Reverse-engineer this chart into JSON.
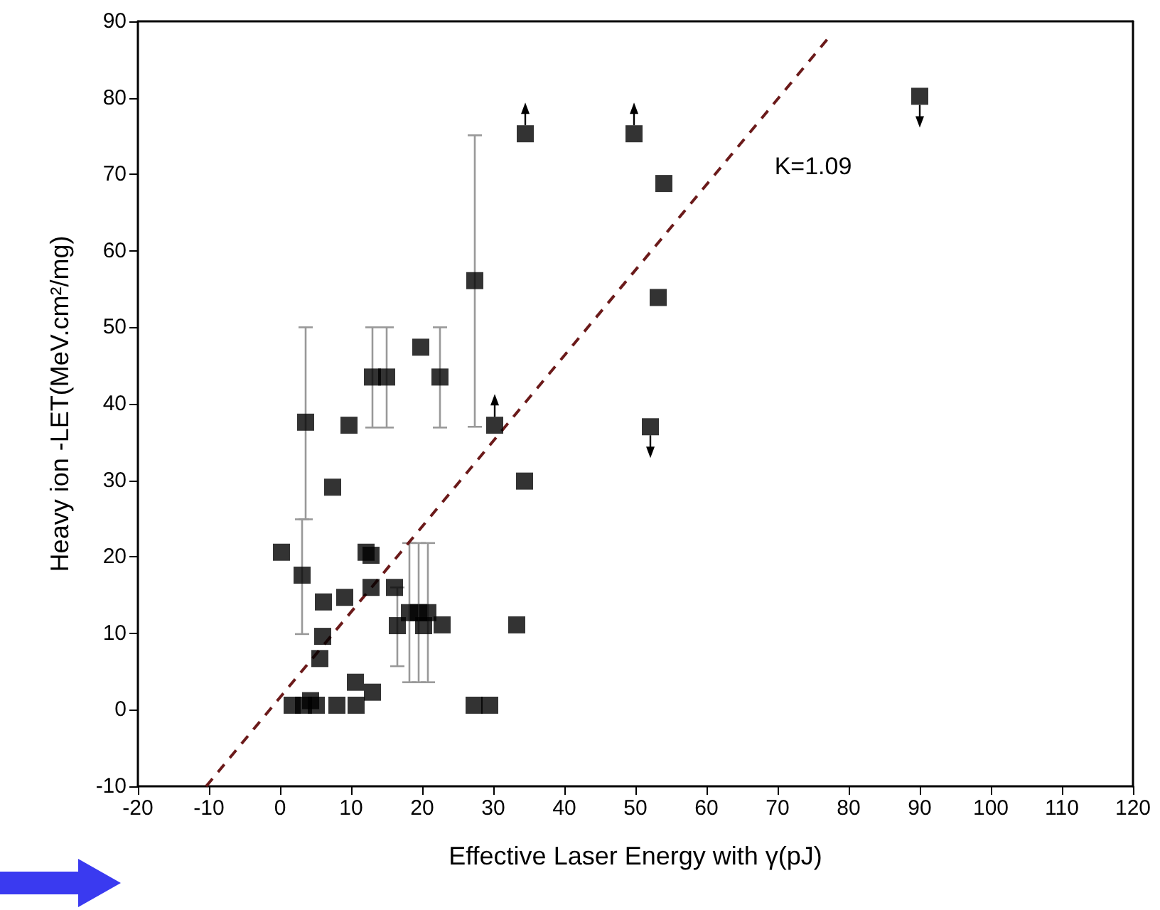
{
  "chart_data": {
    "type": "scatter",
    "xlabel": "Effective Laser Energy with γ(pJ)",
    "ylabel": "Heavy ion -LET(MeV.cm²/mg)",
    "xlim": [
      -20,
      120
    ],
    "xticks": [
      -20,
      -10,
      0,
      10,
      20,
      30,
      40,
      50,
      60,
      70,
      80,
      90,
      100,
      110,
      120
    ],
    "ylim": [
      -10,
      90
    ],
    "yticks": [
      -10,
      0,
      10,
      20,
      30,
      40,
      50,
      60,
      70,
      80,
      90
    ],
    "grid": false,
    "marker": "square",
    "annotations": [
      "K=1.09"
    ],
    "series": [
      {
        "color": "#000000",
        "x": [
          0.2,
          3.1,
          3.6,
          9.7,
          13.0,
          15.0,
          19.8,
          22.5,
          34.4,
          7.4,
          12.1,
          12.8,
          6.1,
          9.1,
          12.8,
          16.1,
          18.2,
          19.5,
          20.8,
          16.5,
          20.2,
          22.8,
          33.3,
          6.0,
          5.6,
          10.6,
          13.0,
          1.7,
          3.3,
          4.3,
          5.1,
          8.0,
          10.7,
          27.3,
          29.5,
          54.0,
          27.4,
          53.2
        ],
        "values": [
          20.6,
          17.6,
          37.6,
          37.2,
          43.5,
          43.5,
          47.4,
          43.5,
          29.9,
          29.1,
          20.6,
          20.2,
          14.1,
          14.7,
          16.0,
          16.0,
          12.7,
          12.7,
          12.7,
          11.0,
          11.0,
          11.1,
          11.1,
          9.6,
          6.7,
          3.6,
          2.3,
          0.6,
          0.6,
          1.2,
          0.6,
          0.6,
          0.6,
          0.6,
          0.6,
          68.8,
          56.1,
          53.9
        ],
        "errors": [
          null,
          [
            9.9,
            24.9
          ],
          [
            24.9,
            50
          ],
          null,
          [
            36.9,
            50
          ],
          [
            36.9,
            50
          ],
          null,
          [
            36.9,
            50
          ],
          null,
          null,
          null,
          null,
          null,
          null,
          null,
          null,
          [
            3.6,
            21.8
          ],
          [
            3.6,
            21.8
          ],
          [
            3.6,
            21.8
          ],
          [
            5.7,
            16
          ],
          null,
          null,
          null,
          null,
          null,
          null,
          null,
          null,
          null,
          null,
          null,
          null,
          null,
          null,
          null,
          null,
          [
            37,
            75.1
          ],
          null
        ]
      },
      {
        "color": "#000000",
        "x": [
          34.5,
          49.8,
          30.2
        ],
        "values": [
          75.3,
          75.3,
          37.2
        ]
      },
      {
        "color": "#000000",
        "x": [
          90,
          52.1
        ],
        "values": [
          80.2,
          37.0
        ]
      },
      {
        "type": "line",
        "color": "#6b1a1a",
        "line_style": "dashed",
        "marker": "none",
        "x": [
          -10.4,
          77.4
        ],
        "values": [
          -10,
          88.1
        ]
      }
    ]
  }
}
